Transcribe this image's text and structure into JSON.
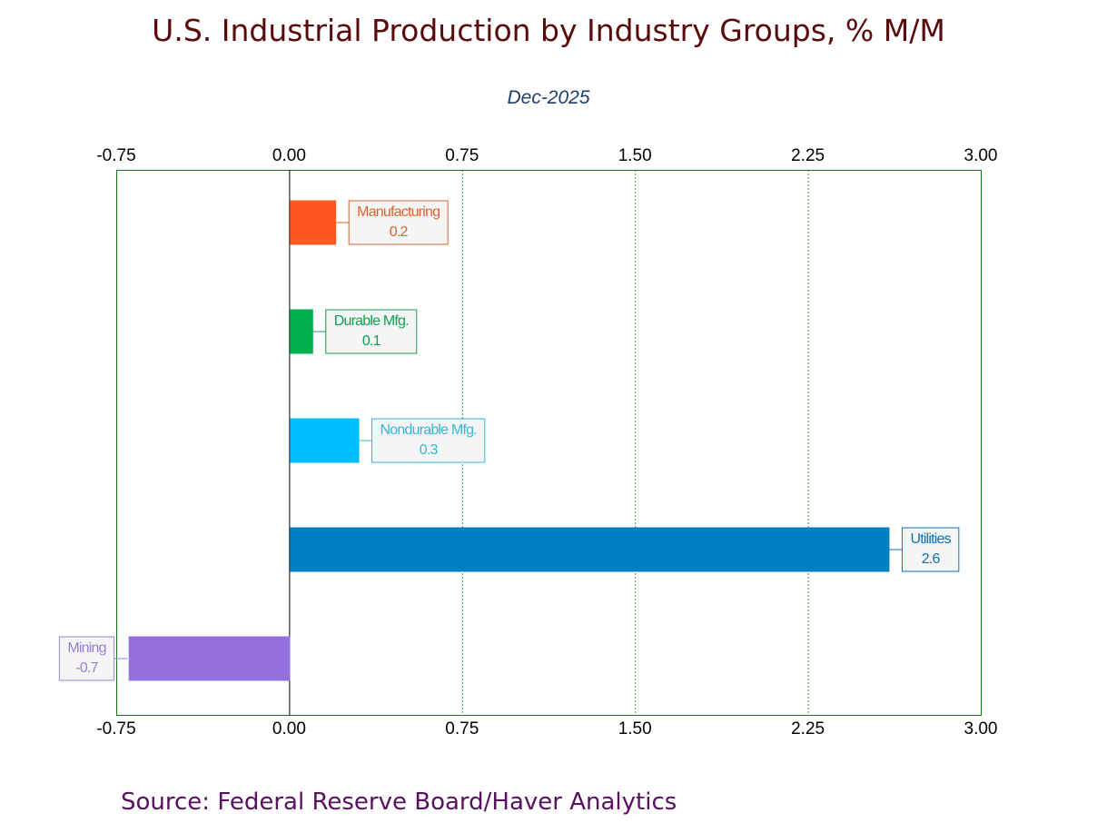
{
  "chart_data": {
    "type": "bar",
    "orientation": "horizontal",
    "title": "U.S. Industrial Production by Industry Groups, % M/M",
    "subtitle": "Dec-2025",
    "source": "Source:  Federal Reserve Board/Haver Analytics",
    "categories": [
      "Manufacturing",
      "Durable Mfg.",
      "Nondurable Mfg.",
      "Utilities",
      "Mining"
    ],
    "values": [
      0.2,
      0.1,
      0.3,
      2.6,
      -0.7
    ],
    "data_labels": [
      "0.2",
      "0.1",
      "0.3",
      "2.6",
      "-0.7"
    ],
    "colors": [
      "#ff5722",
      "#00b04f",
      "#00bfff",
      "#0080c0",
      "#9370db"
    ],
    "label_colors": [
      "#e0602c",
      "#10a050",
      "#30b8d8",
      "#1070b0",
      "#9a80d8"
    ],
    "xlim": [
      -0.75,
      3.0
    ],
    "xticks": [
      "-0.75",
      "0.00",
      "0.75",
      "1.50",
      "2.25",
      "3.00"
    ],
    "xtick_values": [
      -0.75,
      0,
      0.75,
      1.5,
      2.25,
      3.0
    ],
    "grid": "vertical dashed green",
    "axis_color": "#1a7a1a",
    "legend": "none"
  }
}
